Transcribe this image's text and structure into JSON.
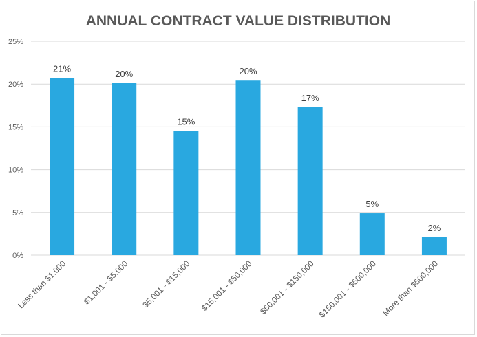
{
  "chart_data": {
    "type": "bar",
    "title": "ANNUAL CONTRACT VALUE DISTRIBUTION",
    "categories": [
      "Less than $1,000",
      "$1,001 - $5,000",
      "$5,001 - $15,000",
      "$15,001 - $50,000",
      "$50,001 - $150,000",
      "$150,001 - $500,000",
      "More than $500,000"
    ],
    "values": [
      20.7,
      20.1,
      14.5,
      20.4,
      17.3,
      4.9,
      2.1
    ],
    "data_labels": [
      "21%",
      "20%",
      "15%",
      "20%",
      "17%",
      "5%",
      "2%"
    ],
    "y_ticks": [
      "0%",
      "5%",
      "10%",
      "15%",
      "20%",
      "25%"
    ],
    "ylim": [
      0,
      25
    ],
    "grid": true,
    "legend": "none",
    "bar_color": "#29a8e0"
  }
}
